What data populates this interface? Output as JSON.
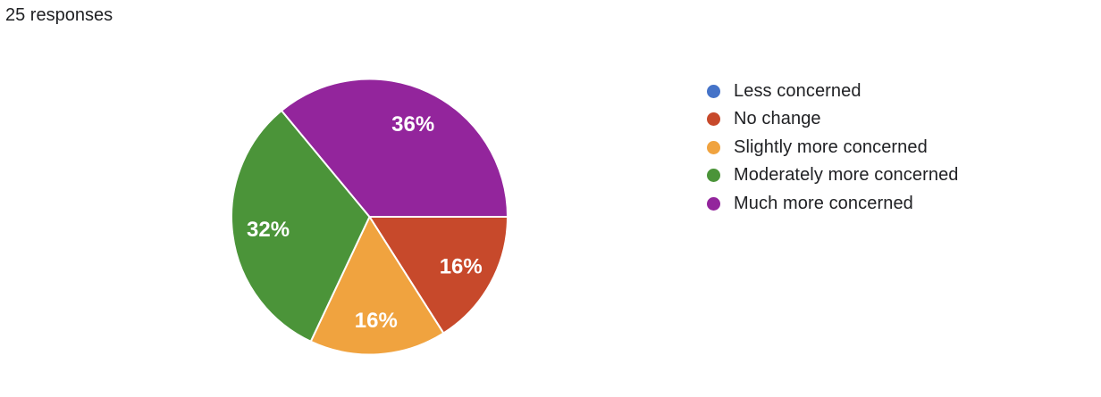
{
  "header": {
    "responses_label": "25 responses"
  },
  "style": {
    "background": "#ffffff",
    "text_color": "#202124",
    "slice_label_color": "#ffffff",
    "slice_separator_color": "#ffffff"
  },
  "chart_data": {
    "type": "pie",
    "title": "25 responses",
    "total_responses": 25,
    "legend_position": "right",
    "start_angle_deg": 0,
    "direction": "clockwise",
    "series": [
      {
        "label": "Less concerned",
        "value": 0,
        "percent_label": "",
        "color": "#4573C8"
      },
      {
        "label": "No change",
        "value": 4,
        "percent_label": "16%",
        "color": "#C7492B"
      },
      {
        "label": "Slightly more concerned",
        "value": 4,
        "percent_label": "16%",
        "color": "#F0A33F"
      },
      {
        "label": "Moderately more concerned",
        "value": 8,
        "percent_label": "32%",
        "color": "#4B9439"
      },
      {
        "label": "Much more concerned",
        "value": 9,
        "percent_label": "36%",
        "color": "#93259C"
      }
    ]
  }
}
